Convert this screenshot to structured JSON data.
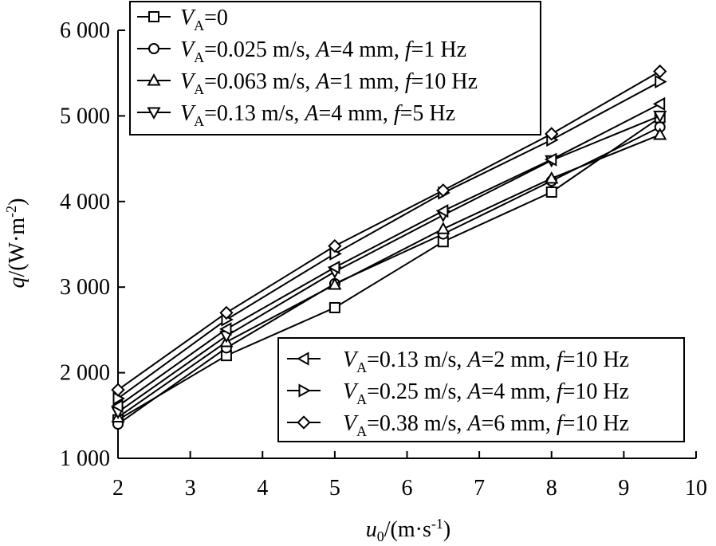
{
  "chart_data": {
    "type": "line",
    "x": [
      2,
      3.5,
      5,
      6.5,
      8,
      9.5
    ],
    "xlim": [
      2,
      10
    ],
    "ylim": [
      1000,
      6000
    ],
    "xticks": [
      2,
      3,
      4,
      5,
      6,
      7,
      8,
      9,
      10
    ],
    "yticks": [
      1000,
      2000,
      3000,
      4000,
      5000,
      6000
    ],
    "ytick_labels": [
      "1 000",
      "2 000",
      "3 000",
      "4 000",
      "5 000",
      "6 000"
    ],
    "xlabel": {
      "main": "u",
      "sub": "0",
      "units": "/(m·s",
      "sup": "-1",
      "close": ")"
    },
    "ylabel": {
      "main": "q",
      "units": "/(W·m",
      "sup": "-2",
      "close": ")"
    },
    "grid": false,
    "series": [
      {
        "marker": "square",
        "values": [
          1450,
          2200,
          2760,
          3530,
          4110,
          4980
        ],
        "label": {
          "a": "=0",
          "b": "",
          "c": "",
          "d": ""
        }
      },
      {
        "marker": "circle",
        "values": [
          1400,
          2290,
          3040,
          3620,
          4240,
          4870
        ],
        "label": {
          "a": "=0.025 m/s, ",
          "b": "=4 mm, ",
          "c": "=1 Hz",
          "d": ""
        }
      },
      {
        "marker": "triangle-up",
        "values": [
          1480,
          2360,
          3030,
          3680,
          4270,
          4780
        ],
        "label": {
          "a": "=0.063 m/s, ",
          "b": "=1 mm, ",
          "c": "=10 Hz",
          "d": ""
        }
      },
      {
        "marker": "triangle-down",
        "values": [
          1540,
          2430,
          3180,
          3840,
          4480,
          5000
        ],
        "label": {
          "a": "=0.13 m/s, ",
          "b": "=4 mm, ",
          "c": "=5 Hz",
          "d": ""
        }
      },
      {
        "marker": "triangle-left",
        "values": [
          1610,
          2510,
          3230,
          3890,
          4490,
          5140
        ],
        "label": {
          "a": "=0.13 m/s, ",
          "b": "=2 mm, ",
          "c": "=10 Hz",
          "d": ""
        }
      },
      {
        "marker": "triangle-right",
        "values": [
          1700,
          2620,
          3390,
          4100,
          4720,
          5400
        ],
        "label": {
          "a": "=0.25 m/s, ",
          "b": "=4 mm, ",
          "c": "=10 Hz",
          "d": ""
        }
      },
      {
        "marker": "diamond",
        "values": [
          1800,
          2700,
          3480,
          4130,
          4790,
          5520
        ],
        "label": {
          "a": "=0.38 m/s, ",
          "b": "=6 mm, ",
          "c": "=10 Hz",
          "d": ""
        }
      }
    ],
    "legend_symbols": {
      "v": "V",
      "sub": "A",
      "amp": "A",
      "freq": "f"
    },
    "legend_placement": [
      "top-left",
      "bottom-right"
    ]
  }
}
